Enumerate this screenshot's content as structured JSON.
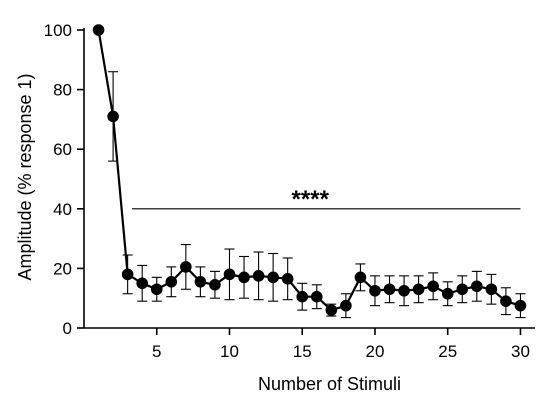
{
  "chart_data": {
    "type": "line",
    "xlabel": "Number of Stimuli",
    "ylabel": "Amplitude (% response 1)",
    "xlim": [
      0,
      31
    ],
    "ylim": [
      0,
      100
    ],
    "xticks": [
      5,
      10,
      15,
      20,
      25,
      30
    ],
    "yticks": [
      0,
      20,
      40,
      60,
      80,
      100
    ],
    "x": [
      1,
      2,
      3,
      4,
      5,
      6,
      7,
      8,
      9,
      10,
      11,
      12,
      13,
      14,
      15,
      16,
      17,
      18,
      19,
      20,
      21,
      22,
      23,
      24,
      25,
      26,
      27,
      28,
      29,
      30
    ],
    "series": [
      {
        "values": [
          100,
          71,
          18,
          15,
          13,
          15.5,
          20.5,
          15.5,
          14.5,
          18,
          17,
          17.5,
          17,
          16.5,
          10.5,
          10.5,
          6,
          7.5,
          17,
          12.5,
          13,
          12.5,
          13,
          14,
          11.5,
          13,
          14,
          13,
          9,
          7.5
        ],
        "error": [
          0,
          15,
          6.5,
          6,
          4,
          5,
          7.5,
          5,
          4.5,
          8.5,
          7,
          8,
          8,
          7,
          4.5,
          4,
          2,
          4,
          4.5,
          5,
          4.5,
          5,
          4.5,
          4.5,
          4,
          4.5,
          5,
          5,
          4.5,
          4
        ]
      }
    ],
    "annotations": [
      {
        "text": "****",
        "x_start": 3.3,
        "x_end": 30,
        "y": 40
      }
    ],
    "grid": false,
    "legend": "none"
  }
}
